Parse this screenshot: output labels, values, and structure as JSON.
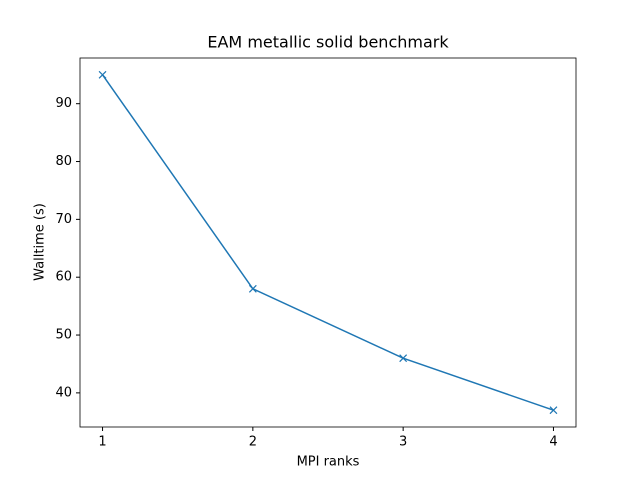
{
  "chart_data": {
    "type": "line",
    "title": "EAM metallic solid benchmark",
    "x_label": "MPI ranks",
    "y_label": "Walltime (s)",
    "x": [
      1,
      2,
      3,
      4
    ],
    "series": [
      {
        "color": "#1f77b4",
        "marker": "x",
        "values": [
          95,
          58,
          46,
          37
        ]
      }
    ],
    "xlim": [
      0.85,
      4.15
    ],
    "xticks": [
      1,
      2,
      3,
      4
    ],
    "ylim": [
      34.1,
      97.9
    ],
    "yticks": [
      40,
      50,
      60,
      70,
      80,
      90
    ],
    "grid": false
  }
}
